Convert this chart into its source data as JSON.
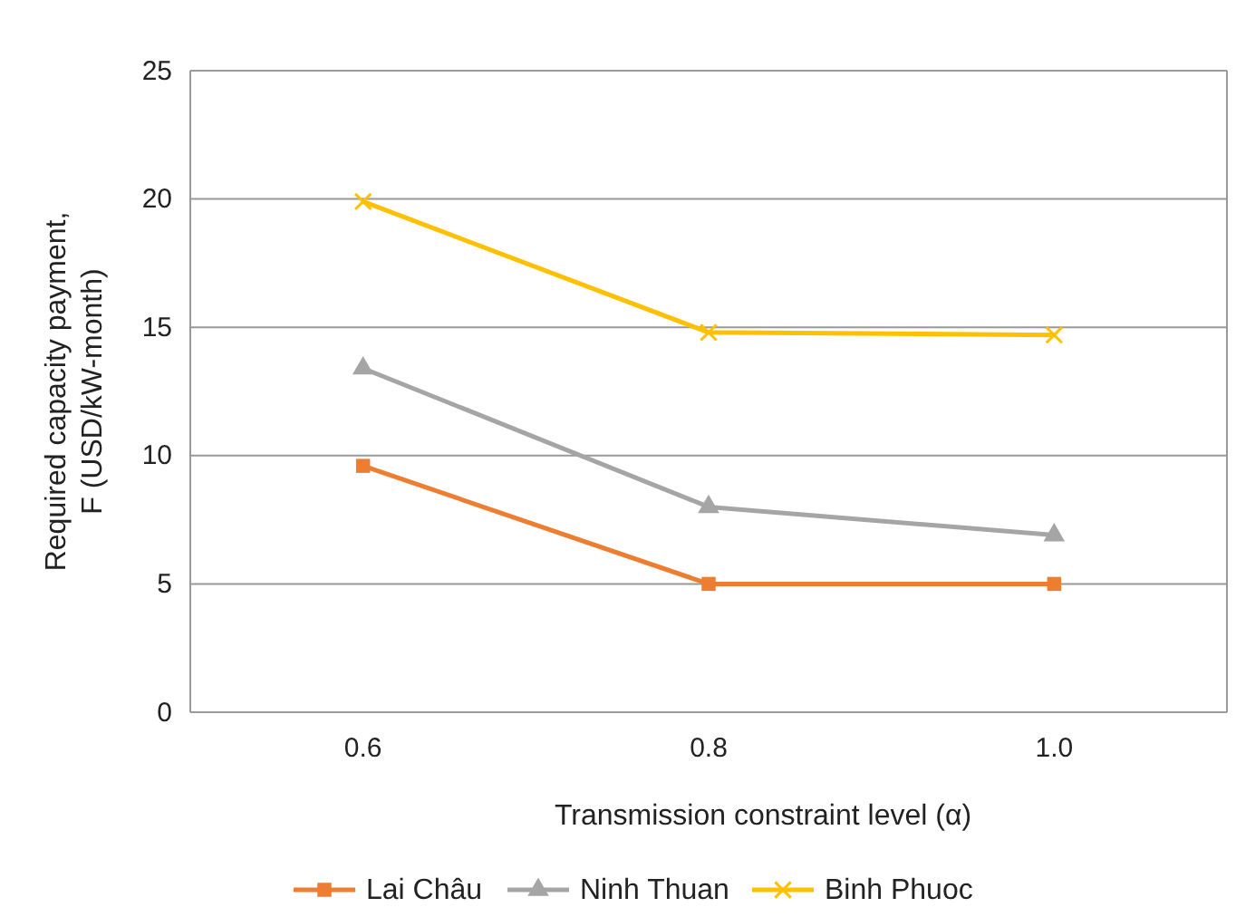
{
  "chart_data": {
    "type": "line",
    "xlabel": "Transmission constraint level (α)",
    "ylabel": "Required capacity payment, F (USD/kW-month)",
    "categories": [
      "0.6",
      "0.8",
      "1.0"
    ],
    "series": [
      {
        "name": "Lai Châu",
        "color": "#ed7d31",
        "marker": "square",
        "values": [
          9.6,
          5.0,
          5.0
        ]
      },
      {
        "name": "Ninh Thuan",
        "color": "#a5a5a5",
        "marker": "triangle",
        "values": [
          13.4,
          8.0,
          6.9
        ]
      },
      {
        "name": "Binh Phuoc",
        "color": "#ffc000",
        "marker": "cross",
        "values": [
          19.9,
          14.8,
          14.7
        ]
      }
    ],
    "ylim": [
      0,
      25
    ],
    "yticks": [
      0,
      5,
      10,
      15,
      20,
      25
    ],
    "grid": "y",
    "legend": "bottom",
    "line_style": "solid"
  }
}
